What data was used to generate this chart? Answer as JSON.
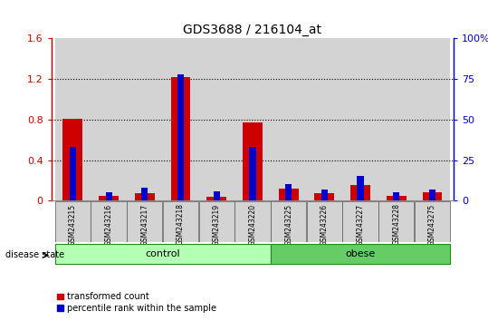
{
  "title": "GDS3688 / 216104_at",
  "samples": [
    "GSM243215",
    "GSM243216",
    "GSM243217",
    "GSM243218",
    "GSM243219",
    "GSM243220",
    "GSM243225",
    "GSM243226",
    "GSM243227",
    "GSM243228",
    "GSM243275"
  ],
  "red_values": [
    0.81,
    0.05,
    0.07,
    1.22,
    0.04,
    0.77,
    0.12,
    0.07,
    0.15,
    0.05,
    0.08
  ],
  "blue_values_pct": [
    33,
    5,
    8,
    78,
    6,
    33,
    10,
    7,
    15,
    5,
    7
  ],
  "groups": [
    {
      "label": "control",
      "start": 0,
      "end": 6,
      "color": "#b3ffb3"
    },
    {
      "label": "obese",
      "start": 6,
      "end": 11,
      "color": "#66cc66"
    }
  ],
  "disease_state_label": "disease state",
  "ylim_left": [
    0,
    1.6
  ],
  "ylim_right": [
    0,
    100
  ],
  "yticks_left": [
    0,
    0.4,
    0.8,
    1.2,
    1.6
  ],
  "ytick_labels_left": [
    "0",
    "0.4",
    "0.8",
    "1.2",
    "1.6"
  ],
  "yticks_right": [
    0,
    25,
    50,
    75,
    100
  ],
  "ytick_labels_right": [
    "0",
    "25",
    "50",
    "75",
    "100%"
  ],
  "left_color": "#cc0000",
  "right_color": "#0000cc",
  "bar_width": 0.55,
  "blue_bar_width": 0.18,
  "legend_red_label": "transformed count",
  "legend_blue_label": "percentile rank within the sample",
  "col_bg_color": "#d3d3d3",
  "plot_bg_color": "#ffffff",
  "grid_color": "#000000",
  "group_border_color": "#228822"
}
